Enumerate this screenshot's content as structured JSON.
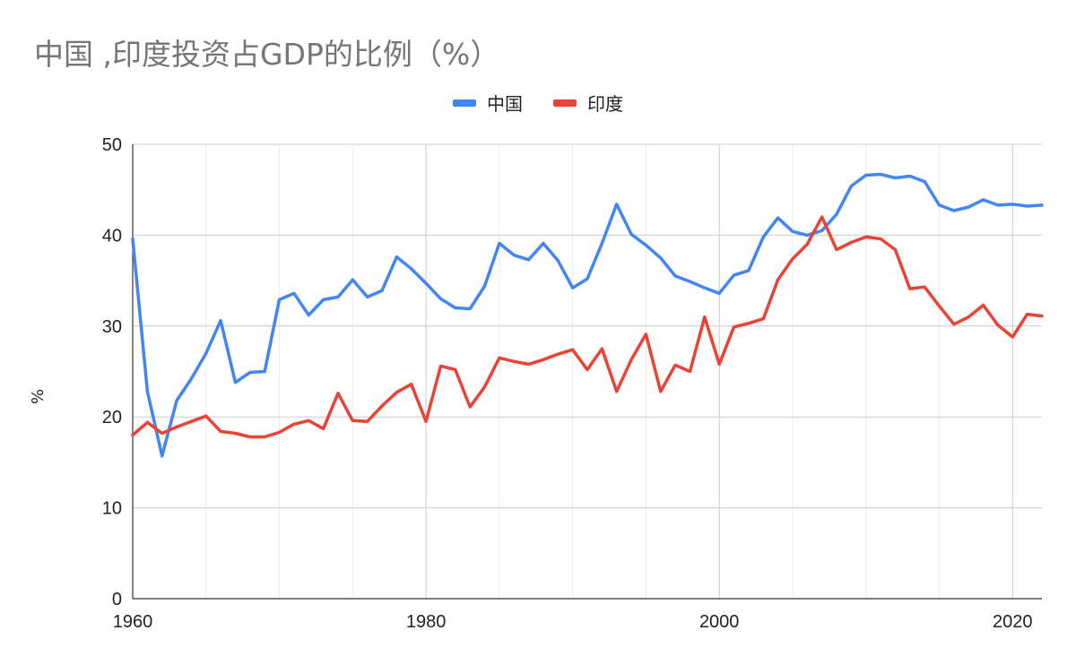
{
  "title": "中国 ,印度投资占GDP的比例（%）",
  "chart_data": {
    "type": "line",
    "title": "中国 ,印度投资占GDP的比例（%）",
    "xlabel": "",
    "ylabel": "%",
    "xlim": [
      1960,
      2022
    ],
    "ylim": [
      0,
      50
    ],
    "x_ticks": [
      1960,
      1980,
      2000,
      2020
    ],
    "y_ticks": [
      0,
      10,
      20,
      30,
      40,
      50
    ],
    "grid": true,
    "legend_position": "top",
    "series": [
      {
        "name": "中国",
        "color": "#4285f4",
        "points": [
          [
            1960,
            39.6
          ],
          [
            1961,
            22.8
          ],
          [
            1962,
            15.7
          ],
          [
            1963,
            21.8
          ],
          [
            1964,
            24.2
          ],
          [
            1965,
            27.0
          ],
          [
            1966,
            30.6
          ],
          [
            1967,
            23.8
          ],
          [
            1968,
            24.9
          ],
          [
            1969,
            25.0
          ],
          [
            1970,
            32.9
          ],
          [
            1971,
            33.6
          ],
          [
            1972,
            31.2
          ],
          [
            1973,
            32.9
          ],
          [
            1974,
            33.2
          ],
          [
            1975,
            35.1
          ],
          [
            1976,
            33.2
          ],
          [
            1977,
            33.9
          ],
          [
            1978,
            37.6
          ],
          [
            1979,
            36.3
          ],
          [
            1980,
            34.7
          ],
          [
            1981,
            33.0
          ],
          [
            1982,
            32.0
          ],
          [
            1983,
            31.9
          ],
          [
            1984,
            34.4
          ],
          [
            1985,
            39.1
          ],
          [
            1986,
            37.8
          ],
          [
            1987,
            37.3
          ],
          [
            1988,
            39.1
          ],
          [
            1989,
            37.2
          ],
          [
            1990,
            34.2
          ],
          [
            1991,
            35.2
          ],
          [
            1992,
            39.1
          ],
          [
            1993,
            43.4
          ],
          [
            1994,
            40.1
          ],
          [
            1995,
            38.9
          ],
          [
            1996,
            37.5
          ],
          [
            1997,
            35.5
          ],
          [
            1998,
            34.9
          ],
          [
            1999,
            34.2
          ],
          [
            2000,
            33.6
          ],
          [
            2001,
            35.6
          ],
          [
            2002,
            36.1
          ],
          [
            2003,
            39.8
          ],
          [
            2004,
            41.9
          ],
          [
            2005,
            40.4
          ],
          [
            2006,
            40.0
          ],
          [
            2007,
            40.5
          ],
          [
            2008,
            42.3
          ],
          [
            2009,
            45.4
          ],
          [
            2010,
            46.6
          ],
          [
            2011,
            46.7
          ],
          [
            2012,
            46.3
          ],
          [
            2013,
            46.5
          ],
          [
            2014,
            45.9
          ],
          [
            2015,
            43.3
          ],
          [
            2016,
            42.7
          ],
          [
            2017,
            43.1
          ],
          [
            2018,
            43.9
          ],
          [
            2019,
            43.3
          ],
          [
            2020,
            43.4
          ],
          [
            2021,
            43.2
          ],
          [
            2022,
            43.3
          ]
        ]
      },
      {
        "name": "印度",
        "color": "#ea4335",
        "points": [
          [
            1960,
            18.0
          ],
          [
            1961,
            19.4
          ],
          [
            1962,
            18.2
          ],
          [
            1963,
            18.9
          ],
          [
            1964,
            19.5
          ],
          [
            1965,
            20.1
          ],
          [
            1966,
            18.4
          ],
          [
            1967,
            18.2
          ],
          [
            1968,
            17.8
          ],
          [
            1969,
            17.8
          ],
          [
            1970,
            18.3
          ],
          [
            1971,
            19.2
          ],
          [
            1972,
            19.6
          ],
          [
            1973,
            18.7
          ],
          [
            1974,
            22.6
          ],
          [
            1975,
            19.6
          ],
          [
            1976,
            19.5
          ],
          [
            1977,
            21.2
          ],
          [
            1978,
            22.7
          ],
          [
            1979,
            23.6
          ],
          [
            1980,
            19.5
          ],
          [
            1981,
            25.6
          ],
          [
            1982,
            25.2
          ],
          [
            1983,
            21.1
          ],
          [
            1984,
            23.3
          ],
          [
            1985,
            26.5
          ],
          [
            1986,
            26.1
          ],
          [
            1987,
            25.8
          ],
          [
            1988,
            26.3
          ],
          [
            1989,
            26.9
          ],
          [
            1990,
            27.4
          ],
          [
            1991,
            25.2
          ],
          [
            1992,
            27.5
          ],
          [
            1993,
            22.8
          ],
          [
            1994,
            26.3
          ],
          [
            1995,
            29.1
          ],
          [
            1996,
            22.8
          ],
          [
            1997,
            25.7
          ],
          [
            1998,
            25.0
          ],
          [
            1999,
            31.0
          ],
          [
            2000,
            25.8
          ],
          [
            2001,
            29.9
          ],
          [
            2002,
            30.3
          ],
          [
            2003,
            30.8
          ],
          [
            2004,
            35.1
          ],
          [
            2005,
            37.4
          ],
          [
            2006,
            39.0
          ],
          [
            2007,
            42.0
          ],
          [
            2008,
            38.4
          ],
          [
            2009,
            39.2
          ],
          [
            2010,
            39.8
          ],
          [
            2011,
            39.6
          ],
          [
            2012,
            38.4
          ],
          [
            2013,
            34.1
          ],
          [
            2014,
            34.3
          ],
          [
            2015,
            32.2
          ],
          [
            2016,
            30.2
          ],
          [
            2017,
            31.0
          ],
          [
            2018,
            32.3
          ],
          [
            2019,
            30.1
          ],
          [
            2020,
            28.8
          ],
          [
            2021,
            31.3
          ],
          [
            2022,
            31.1
          ]
        ]
      }
    ]
  }
}
